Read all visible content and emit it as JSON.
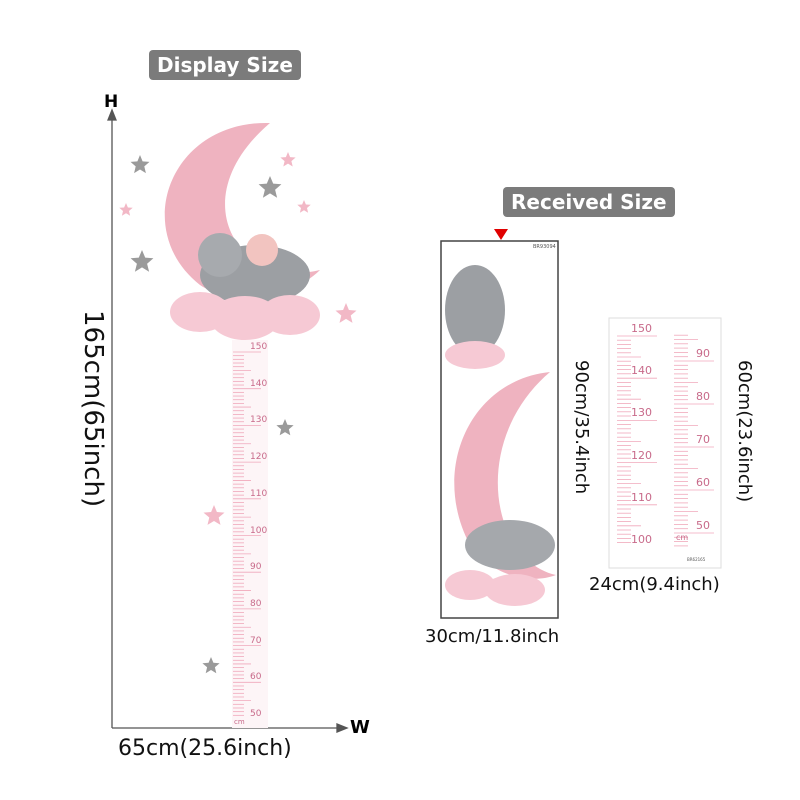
{
  "display": {
    "label": "Display Size",
    "height_axis": "H",
    "width_axis": "W",
    "height_text": "165cm(65inch)",
    "width_text": "65cm(25.6inch)",
    "ruler_labels": [
      "150",
      "140",
      "130",
      "120",
      "110",
      "100",
      "90",
      "80",
      "70",
      "60",
      "50"
    ],
    "ruler_unit": "cm"
  },
  "received": {
    "label": "Received Size",
    "sheet1": {
      "code": "BR93094",
      "height_text": "90cm/35.4inch",
      "width_text": "30cm/11.8inch"
    },
    "sheet2": {
      "code": "BR62165",
      "height_text": "60cm(23.6inch)",
      "width_text": "24cm(9.4inch)",
      "left_labels": [
        "150",
        "140",
        "130",
        "120",
        "110",
        "100"
      ],
      "right_labels": [
        "90",
        "80",
        "70",
        "60",
        "50"
      ],
      "unit": "cm"
    }
  },
  "colors": {
    "pink": "#f2b8c6",
    "ruler_text": "#c86a8a",
    "gray_star": "#9a9a9a",
    "marker": "#e00000",
    "pill": "#7b7b7b"
  }
}
